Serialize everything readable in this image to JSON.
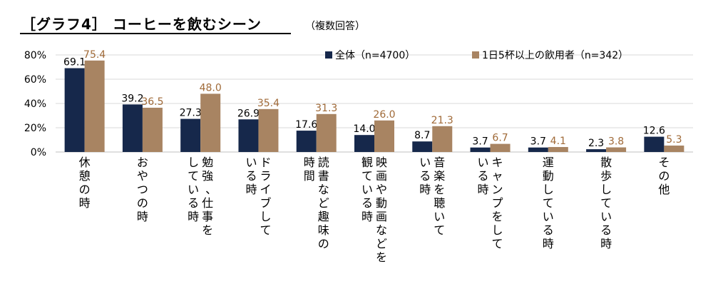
{
  "header": {
    "title": "［グラフ4］ コーヒーを飲むシーン",
    "note": "（複数回答）"
  },
  "chart_data": {
    "type": "bar",
    "title": "［グラフ4］ コーヒーを飲むシーン",
    "ylim": [
      0,
      80
    ],
    "yticks": [
      "0%",
      "20%",
      "40%",
      "60%",
      "80%"
    ],
    "grid": true,
    "legend_position": "top",
    "categories": [
      [
        "休憩の時"
      ],
      [
        "おやつの時"
      ],
      [
        "勉強、仕事を",
        "している時"
      ],
      [
        "ドライブして",
        "いる時"
      ],
      [
        "読書など趣味の",
        "時間"
      ],
      [
        "映画や動画などを",
        "観ている時"
      ],
      [
        "音楽を聴いて",
        "いる時"
      ],
      [
        "キャンプをして",
        "いる時"
      ],
      [
        "運動している時"
      ],
      [
        "散歩している時"
      ],
      [
        "その他"
      ]
    ],
    "series": [
      {
        "name": "全体（n=4700）",
        "color": "#16284b",
        "values": [
          69.1,
          39.2,
          27.3,
          26.9,
          17.6,
          14.0,
          8.7,
          3.7,
          3.7,
          2.3,
          12.6
        ],
        "labels": [
          "69.1",
          "39.2",
          "27.3",
          "26.9",
          "17.6",
          "14.0",
          "8.7",
          "3.7",
          "3.7",
          "2.3",
          "12.6"
        ],
        "label_color": "#000000"
      },
      {
        "name": "1日5杯以上の飲用者（n=342）",
        "color": "#a88462",
        "values": [
          75.4,
          36.5,
          48.0,
          35.4,
          31.3,
          26.0,
          21.3,
          6.7,
          4.1,
          3.8,
          5.3
        ],
        "labels": [
          "75.4",
          "36.5",
          "48.0",
          "35.4",
          "31.3",
          "26.0",
          "21.3",
          "6.7",
          "4.1",
          "3.8",
          "5.3"
        ],
        "label_color": "#a06a38"
      }
    ]
  }
}
